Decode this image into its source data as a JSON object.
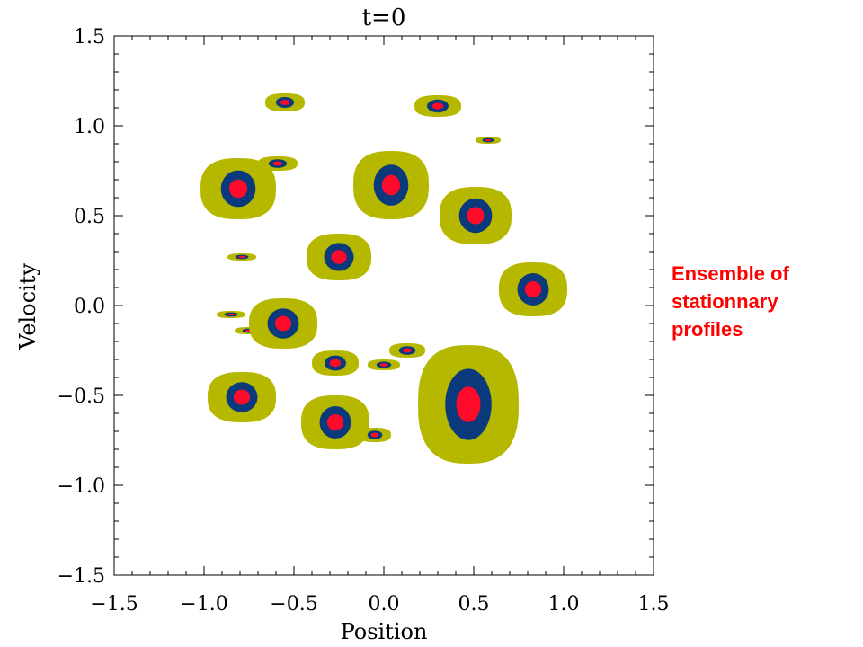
{
  "chart_data": {
    "type": "contour",
    "title": "t=0",
    "xlabel": "Position",
    "ylabel": "Velocity",
    "xlim": [
      -1.5,
      1.5
    ],
    "ylim": [
      -1.5,
      1.5
    ],
    "xticks": [
      "−1.5",
      "−1.0",
      "−0.5",
      "0.0",
      "0.5",
      "1.0",
      "1.5"
    ],
    "yticks": [
      "−1.5",
      "−1.0",
      "−0.5",
      "0.0",
      "0.5",
      "1.0",
      "1.5"
    ],
    "grid": false,
    "level_colors": {
      "outer": "#b6b800",
      "middle": "#0a3a7c",
      "core": "#ff0a2a"
    },
    "profiles": [
      {
        "x": -0.55,
        "y": 1.13,
        "rx": 0.11,
        "ry": 0.05
      },
      {
        "x": 0.3,
        "y": 1.11,
        "rx": 0.13,
        "ry": 0.06
      },
      {
        "x": 0.58,
        "y": 0.92,
        "rx": 0.07,
        "ry": 0.02
      },
      {
        "x": -0.59,
        "y": 0.79,
        "rx": 0.11,
        "ry": 0.04
      },
      {
        "x": -0.81,
        "y": 0.65,
        "rx": 0.21,
        "ry": 0.17
      },
      {
        "x": 0.04,
        "y": 0.67,
        "rx": 0.21,
        "ry": 0.19
      },
      {
        "x": 0.51,
        "y": 0.5,
        "rx": 0.2,
        "ry": 0.16
      },
      {
        "x": -0.79,
        "y": 0.27,
        "rx": 0.08,
        "ry": 0.02
      },
      {
        "x": -0.25,
        "y": 0.27,
        "rx": 0.18,
        "ry": 0.13
      },
      {
        "x": 0.83,
        "y": 0.09,
        "rx": 0.19,
        "ry": 0.15
      },
      {
        "x": -0.85,
        "y": -0.05,
        "rx": 0.08,
        "ry": 0.02
      },
      {
        "x": -0.75,
        "y": -0.14,
        "rx": 0.08,
        "ry": 0.02
      },
      {
        "x": -0.56,
        "y": -0.1,
        "rx": 0.19,
        "ry": 0.14
      },
      {
        "x": -0.27,
        "y": -0.32,
        "rx": 0.13,
        "ry": 0.07
      },
      {
        "x": 0.0,
        "y": -0.33,
        "rx": 0.09,
        "ry": 0.03
      },
      {
        "x": 0.13,
        "y": -0.25,
        "rx": 0.1,
        "ry": 0.04
      },
      {
        "x": -0.79,
        "y": -0.51,
        "rx": 0.19,
        "ry": 0.14
      },
      {
        "x": -0.27,
        "y": -0.65,
        "rx": 0.19,
        "ry": 0.15
      },
      {
        "x": -0.05,
        "y": -0.72,
        "rx": 0.09,
        "ry": 0.04
      },
      {
        "x": 0.47,
        "y": -0.55,
        "rx": 0.28,
        "ry": 0.33
      }
    ]
  },
  "annotation": {
    "lines": [
      "Ensemble of",
      "stationnary",
      "profiles"
    ]
  }
}
